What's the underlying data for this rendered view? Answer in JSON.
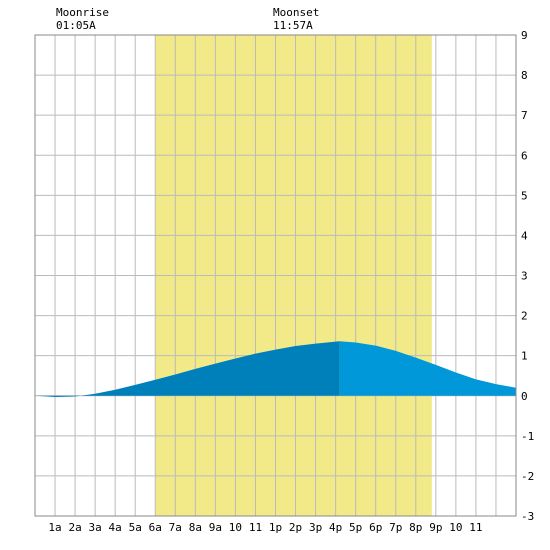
{
  "header": {
    "moonrise_label": "Moonrise",
    "moonrise_time": "01:05A",
    "moonset_label": "Moonset",
    "moonset_time": "11:57A"
  },
  "chart_data": {
    "type": "area",
    "title": "",
    "xlabel": "",
    "ylabel": "",
    "x_ticks": [
      "1a",
      "2a",
      "3a",
      "4a",
      "5a",
      "6a",
      "7a",
      "8a",
      "9a",
      "10",
      "11",
      "1p",
      "2p",
      "3p",
      "4p",
      "5p",
      "6p",
      "7p",
      "8p",
      "9p",
      "10",
      "11"
    ],
    "y_ticks": [
      9,
      8,
      7,
      6,
      5,
      4,
      3,
      2,
      1,
      0,
      -1,
      -2,
      -3
    ],
    "xlim": [
      0,
      24
    ],
    "ylim": [
      -3,
      9
    ],
    "grid": true,
    "daylight_hours": [
      6.0,
      19.8
    ],
    "moonrise_hour": 1.08,
    "moonset_hour": 11.95,
    "peak_hour": 15.2,
    "series": [
      {
        "x": [
          0,
          1,
          2,
          3,
          4,
          5,
          6,
          7,
          8,
          9,
          10,
          11,
          12,
          13,
          14,
          15,
          15.2,
          16,
          17,
          18,
          19,
          20,
          21,
          22,
          23,
          24
        ],
        "values": [
          0.0,
          -0.03,
          -0.02,
          0.05,
          0.15,
          0.27,
          0.4,
          0.53,
          0.67,
          0.8,
          0.93,
          1.05,
          1.15,
          1.24,
          1.3,
          1.35,
          1.36,
          1.33,
          1.25,
          1.12,
          0.95,
          0.77,
          0.58,
          0.41,
          0.29,
          0.2
        ]
      }
    ],
    "colors": {
      "daylight": "#f2ea88",
      "tide_before_peak": "#0080bb",
      "tide_after_peak": "#0098d8",
      "grid": "#bbbbbb",
      "frame": "#888888"
    }
  }
}
